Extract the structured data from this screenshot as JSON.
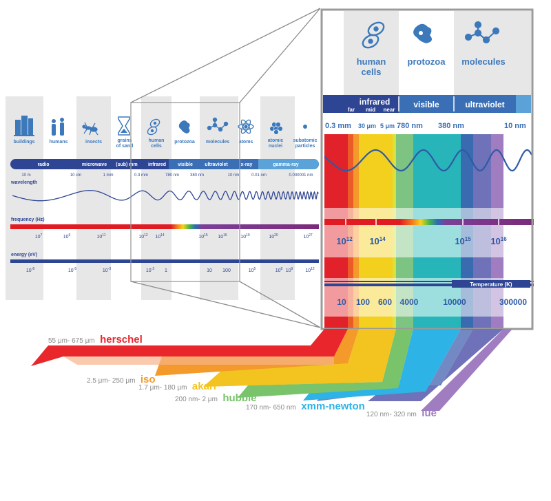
{
  "left_panel": {
    "objects": [
      {
        "label": "buildings",
        "icon": "buildings-icon"
      },
      {
        "label": "humans",
        "icon": "humans-icon"
      },
      {
        "label": "insects",
        "icon": "insect-icon"
      },
      {
        "label": "grains",
        "label2": "of sand",
        "icon": "hourglass-icon"
      },
      {
        "label": "human",
        "label2": "cells",
        "icon": "cells-icon"
      },
      {
        "label": "protozoa",
        "icon": "protozoa-icon"
      },
      {
        "label": "molecules",
        "icon": "molecule-icon"
      },
      {
        "label": "atoms",
        "icon": "atom-icon"
      },
      {
        "label": "atomic",
        "label2": "nuclei",
        "icon": "nucleus-icon"
      },
      {
        "label": "subatomic",
        "label2": "particles",
        "icon": "particle-icon"
      }
    ],
    "bands": [
      "radio",
      "microwave",
      "(sub) mm",
      "infrared",
      "visible",
      "ultraviolet",
      "x-ray",
      "gamma-ray"
    ],
    "wavelength_label": "wavelength",
    "wavelength_ticks": [
      "10 m",
      "10 cm",
      "1 mm",
      "0.3 mm",
      "780 nm",
      "380 nm",
      "10 nm",
      "0.01 nm",
      "0.000001 nm"
    ],
    "frequency_label": "frequency (Hz)",
    "frequency_ticks": [
      {
        "base": "10",
        "exp": "7"
      },
      {
        "base": "10",
        "exp": "9"
      },
      {
        "base": "10",
        "exp": "11"
      },
      {
        "base": "10",
        "exp": "12"
      },
      {
        "base": "10",
        "exp": "14"
      },
      {
        "base": "10",
        "exp": "15"
      },
      {
        "base": "10",
        "exp": "16"
      },
      {
        "base": "10",
        "exp": "19"
      },
      {
        "base": "10",
        "exp": "20"
      },
      {
        "base": "10",
        "exp": "27"
      }
    ],
    "energy_label": "energy (eV)",
    "energy_ticks": [
      {
        "base": "10",
        "exp": "-8"
      },
      {
        "base": "10",
        "exp": "-5"
      },
      {
        "base": "10",
        "exp": "-3"
      },
      {
        "base": "10",
        "exp": "-2"
      },
      {
        "base": "1",
        "exp": ""
      },
      {
        "base": "10",
        "exp": ""
      },
      {
        "base": "100",
        "exp": ""
      },
      {
        "base": "10",
        "exp": "5"
      },
      {
        "base": "10",
        "exp": "8"
      },
      {
        "base": "10",
        "exp": "9"
      },
      {
        "base": "10",
        "exp": "12"
      }
    ]
  },
  "zoom_panel": {
    "objects": [
      {
        "label": "human",
        "label2": "cells",
        "icon": "cells-icon"
      },
      {
        "label": "protozoa",
        "icon": "protozoa-icon"
      },
      {
        "label": "molecules",
        "icon": "molecule-icon"
      }
    ],
    "bands": {
      "infrared": "infrared",
      "far": "far",
      "mid": "mid",
      "near": "near",
      "visible": "visible",
      "ultraviolet": "ultraviolet"
    },
    "wavelength_ticks": [
      "0.3 mm",
      "30 μm",
      "5 μm",
      "780 nm",
      "380 nm",
      "10 nm"
    ],
    "frequency_ticks": [
      {
        "base": "10",
        "exp": "12"
      },
      {
        "base": "10",
        "exp": "14"
      },
      {
        "base": "10",
        "exp": "15"
      },
      {
        "base": "10",
        "exp": "16"
      }
    ],
    "temperature_label": "Temperature (K)",
    "temperature_ticks": [
      "10",
      "100",
      "600",
      "4000",
      "10000",
      "300000"
    ]
  },
  "missions": [
    {
      "range": "55 μm- 675 μm",
      "name": "herschel",
      "color": "#e8262b"
    },
    {
      "range": "2.5 μm- 250 μm",
      "name": "iso",
      "color": "#f39a2a"
    },
    {
      "range": "1.7 μm- 180 μm",
      "name": "akari",
      "color": "#f3c420"
    },
    {
      "range": "200 nm- 2 μm",
      "name": "hubble",
      "color": "#79c36b"
    },
    {
      "range": "170 nm- 650 nm",
      "name": "xmm-newton",
      "color": "#2db3e6"
    },
    {
      "range": "120 nm- 320 nm",
      "name": "iue",
      "color": "#a27ec1"
    }
  ],
  "colors": {
    "dark_blue": "#2e4593",
    "mid_blue": "#3a6fb6",
    "light_blue": "#5aa2d8",
    "icon_blue": "#3c79bb",
    "stripe_gray": "#e7e7e8"
  }
}
